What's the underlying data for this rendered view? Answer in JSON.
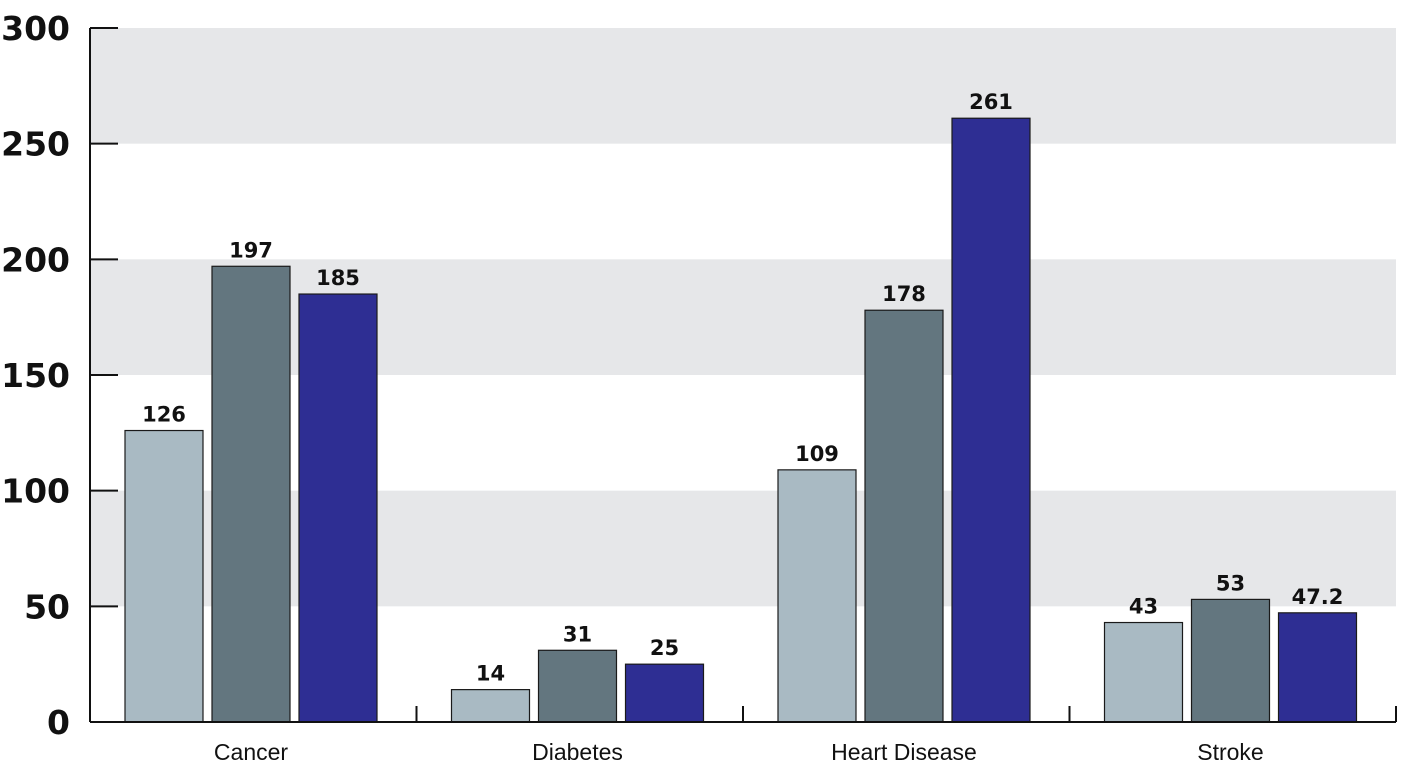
{
  "chart_data": {
    "type": "bar",
    "title": "",
    "xlabel": "",
    "ylabel": "",
    "ylim": [
      0,
      300
    ],
    "yticks": [
      "0",
      "50",
      "100",
      "150",
      "200",
      "250",
      "300"
    ],
    "grid": "alternating horizontal bands",
    "legend": "none",
    "categories": [
      "Cancer",
      "Diabetes",
      "Heart Disease",
      "Stroke"
    ],
    "series": [
      {
        "values": [
          126,
          14,
          109,
          43
        ],
        "labels": [
          "126",
          "14",
          "109",
          "43"
        ],
        "color": "#a9bac3"
      },
      {
        "values": [
          197,
          31,
          178,
          53
        ],
        "labels": [
          "197",
          "31",
          "178",
          "53"
        ],
        "color": "#63767f"
      },
      {
        "values": [
          185,
          25,
          261,
          47.2
        ],
        "labels": [
          "185",
          "25",
          "261",
          "47.2"
        ],
        "color": "#2e2e93"
      }
    ],
    "band_color": "#e6e7e9",
    "axis_color": "#111111"
  }
}
